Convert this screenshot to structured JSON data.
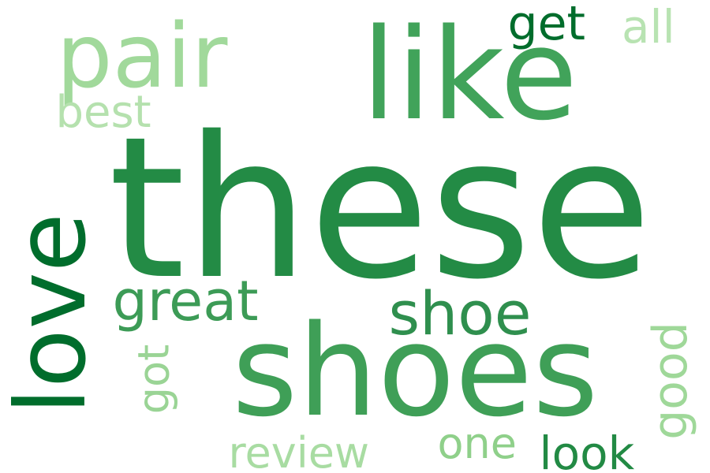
{
  "words": [
    {
      "key": "these",
      "text": "these",
      "color": "#238b45"
    },
    {
      "key": "like",
      "text": "like",
      "color": "#41a35a"
    },
    {
      "key": "shoes",
      "text": "shoes",
      "color": "#3f9f57"
    },
    {
      "key": "pair",
      "text": "pair",
      "color": "#a1d99b"
    },
    {
      "key": "love",
      "text": "love",
      "color": "#006d2c"
    },
    {
      "key": "shoe",
      "text": "shoe",
      "color": "#2f8f4e"
    },
    {
      "key": "great",
      "text": "great",
      "color": "#3c9b56"
    },
    {
      "key": "get",
      "text": "get",
      "color": "#006d2c"
    },
    {
      "key": "all",
      "text": "all",
      "color": "#b8e3b2"
    },
    {
      "key": "best",
      "text": "best",
      "color": "#b5e1ae"
    },
    {
      "key": "good",
      "text": "good",
      "color": "#9fd899"
    },
    {
      "key": "got",
      "text": "got",
      "color": "#9ad495"
    },
    {
      "key": "review",
      "text": "review",
      "color": "#a8dca2"
    },
    {
      "key": "one",
      "text": "one",
      "color": "#8fd08a"
    },
    {
      "key": "look",
      "text": "look",
      "color": "#228a44"
    }
  ]
}
